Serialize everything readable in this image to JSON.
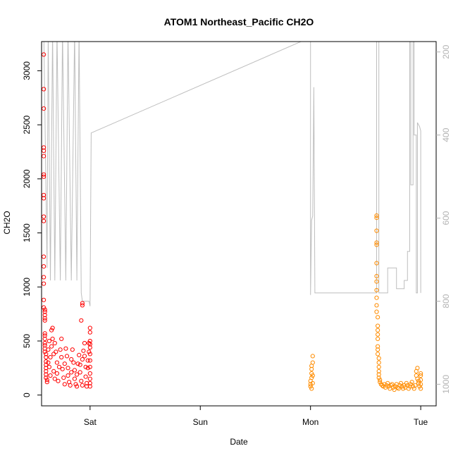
{
  "chart_data": {
    "type": "scatter",
    "title": "ATOM1 Northeast_Pacific CH2O",
    "xlabel": "Date",
    "ylabel": "CH2O",
    "x_ticks": [
      {
        "label": "Sat",
        "value": 1.0
      },
      {
        "label": "Sun",
        "value": 2.0
      },
      {
        "label": "Mon",
        "value": 3.0
      },
      {
        "label": "Tue",
        "value": 4.0
      }
    ],
    "xlim": [
      0.56,
      4.14
    ],
    "ylim": [
      -100,
      3270
    ],
    "y_ticks": [
      0,
      500,
      1000,
      1500,
      2000,
      2500,
      3000
    ],
    "y2_ticks": [
      200,
      400,
      600,
      800,
      1000
    ],
    "y2lim": [
      1052,
      175
    ],
    "colors": {
      "series_1": "#ff0000",
      "series_2": "#ff8c00",
      "pressure_line": "#bebebe",
      "right_axis": "#b3b3b3"
    },
    "series": [
      {
        "color": "#ff0000",
        "points": [
          [
            0.58,
            3150
          ],
          [
            0.58,
            2830
          ],
          [
            0.58,
            2650
          ],
          [
            0.58,
            2290
          ],
          [
            0.58,
            2260
          ],
          [
            0.58,
            2210
          ],
          [
            0.58,
            2040
          ],
          [
            0.58,
            2020
          ],
          [
            0.58,
            1850
          ],
          [
            0.58,
            1820
          ],
          [
            0.58,
            1650
          ],
          [
            0.58,
            1610
          ],
          [
            0.58,
            1280
          ],
          [
            0.58,
            1190
          ],
          [
            0.58,
            1090
          ],
          [
            0.58,
            1030
          ],
          [
            0.58,
            880
          ],
          [
            0.58,
            810
          ],
          [
            0.59,
            790
          ],
          [
            0.59,
            770
          ],
          [
            0.59,
            740
          ],
          [
            0.59,
            710
          ],
          [
            0.59,
            690
          ],
          [
            0.59,
            570
          ],
          [
            0.59,
            550
          ],
          [
            0.59,
            520
          ],
          [
            0.59,
            480
          ],
          [
            0.59,
            460
          ],
          [
            0.59,
            430
          ],
          [
            0.59,
            400
          ],
          [
            0.6,
            380
          ],
          [
            0.6,
            350
          ],
          [
            0.6,
            310
          ],
          [
            0.6,
            280
          ],
          [
            0.6,
            250
          ],
          [
            0.6,
            220
          ],
          [
            0.6,
            190
          ],
          [
            0.6,
            160
          ],
          [
            0.61,
            140
          ],
          [
            0.61,
            120
          ],
          [
            0.62,
            300
          ],
          [
            0.62,
            420
          ],
          [
            0.63,
            500
          ],
          [
            0.63,
            260
          ],
          [
            0.64,
            180
          ],
          [
            0.64,
            350
          ],
          [
            0.65,
            450
          ],
          [
            0.65,
            600
          ],
          [
            0.66,
            620
          ],
          [
            0.66,
            520
          ],
          [
            0.67,
            380
          ],
          [
            0.67,
            220
          ],
          [
            0.68,
            150
          ],
          [
            0.68,
            480
          ],
          [
            0.69,
            400
          ],
          [
            0.7,
            300
          ],
          [
            0.7,
            200
          ],
          [
            0.71,
            130
          ],
          [
            0.72,
            260
          ],
          [
            0.73,
            420
          ],
          [
            0.74,
            520
          ],
          [
            0.74,
            350
          ],
          [
            0.75,
            240
          ],
          [
            0.76,
            160
          ],
          [
            0.77,
            100
          ],
          [
            0.77,
            290
          ],
          [
            0.78,
            430
          ],
          [
            0.79,
            360
          ],
          [
            0.8,
            250
          ],
          [
            0.8,
            180
          ],
          [
            0.81,
            120
          ],
          [
            0.82,
            90
          ],
          [
            0.83,
            210
          ],
          [
            0.83,
            330
          ],
          [
            0.84,
            420
          ],
          [
            0.85,
            300
          ],
          [
            0.86,
            230
          ],
          [
            0.86,
            150
          ],
          [
            0.87,
            100
          ],
          [
            0.88,
            80
          ],
          [
            0.88,
            190
          ],
          [
            0.89,
            290
          ],
          [
            0.9,
            370
          ],
          [
            0.91,
            280
          ],
          [
            0.91,
            210
          ],
          [
            0.92,
            130
          ],
          [
            0.93,
            90
          ],
          [
            0.93,
            330
          ],
          [
            0.94,
            410
          ],
          [
            0.95,
            480
          ],
          [
            0.95,
            360
          ],
          [
            0.96,
            260
          ],
          [
            0.96,
            170
          ],
          [
            0.97,
            110
          ],
          [
            0.97,
            80
          ],
          [
            0.98,
            250
          ],
          [
            0.98,
            320
          ],
          [
            0.99,
            400
          ],
          [
            0.99,
            480
          ],
          [
            0.92,
            690
          ],
          [
            0.93,
            850
          ],
          [
            0.93,
            830
          ],
          [
            1.0,
            470
          ],
          [
            1.0,
            440
          ],
          [
            1.0,
            380
          ],
          [
            1.0,
            320
          ],
          [
            1.0,
            260
          ],
          [
            1.0,
            200
          ],
          [
            1.0,
            150
          ],
          [
            1.0,
            110
          ],
          [
            1.0,
            80
          ],
          [
            1.0,
            620
          ],
          [
            1.0,
            580
          ],
          [
            1.0,
            500
          ]
        ]
      },
      {
        "color": "#ff8c00",
        "points": [
          [
            3.0,
            80
          ],
          [
            3.0,
            100
          ],
          [
            3.0,
            130
          ],
          [
            3.01,
            160
          ],
          [
            3.01,
            200
          ],
          [
            3.01,
            240
          ],
          [
            3.01,
            270
          ],
          [
            3.02,
            300
          ],
          [
            3.02,
            360
          ],
          [
            3.01,
            60
          ],
          [
            3.02,
            110
          ],
          [
            3.02,
            180
          ],
          [
            3.6,
            1660
          ],
          [
            3.6,
            1640
          ],
          [
            3.6,
            1520
          ],
          [
            3.6,
            1410
          ],
          [
            3.6,
            1390
          ],
          [
            3.6,
            1220
          ],
          [
            3.6,
            1100
          ],
          [
            3.6,
            1050
          ],
          [
            3.6,
            970
          ],
          [
            3.6,
            900
          ],
          [
            3.6,
            830
          ],
          [
            3.6,
            770
          ],
          [
            3.61,
            720
          ],
          [
            3.61,
            640
          ],
          [
            3.61,
            600
          ],
          [
            3.61,
            560
          ],
          [
            3.61,
            520
          ],
          [
            3.61,
            450
          ],
          [
            3.61,
            420
          ],
          [
            3.61,
            380
          ],
          [
            3.62,
            340
          ],
          [
            3.62,
            300
          ],
          [
            3.62,
            260
          ],
          [
            3.62,
            220
          ],
          [
            3.62,
            190
          ],
          [
            3.62,
            160
          ],
          [
            3.63,
            140
          ],
          [
            3.63,
            120
          ],
          [
            3.64,
            100
          ],
          [
            3.65,
            90
          ],
          [
            3.66,
            80
          ],
          [
            3.67,
            100
          ],
          [
            3.68,
            70
          ],
          [
            3.69,
            90
          ],
          [
            3.7,
            110
          ],
          [
            3.71,
            80
          ],
          [
            3.72,
            60
          ],
          [
            3.73,
            90
          ],
          [
            3.74,
            100
          ],
          [
            3.75,
            70
          ],
          [
            3.76,
            50
          ],
          [
            3.77,
            80
          ],
          [
            3.78,
            100
          ],
          [
            3.79,
            70
          ],
          [
            3.8,
            60
          ],
          [
            3.81,
            90
          ],
          [
            3.82,
            110
          ],
          [
            3.83,
            80
          ],
          [
            3.84,
            60
          ],
          [
            3.85,
            90
          ],
          [
            3.86,
            70
          ],
          [
            3.87,
            110
          ],
          [
            3.88,
            90
          ],
          [
            3.89,
            60
          ],
          [
            3.9,
            80
          ],
          [
            3.91,
            100
          ],
          [
            3.92,
            120
          ],
          [
            3.93,
            80
          ],
          [
            3.94,
            60
          ],
          [
            3.95,
            90
          ],
          [
            3.96,
            180
          ],
          [
            3.96,
            220
          ],
          [
            3.97,
            250
          ],
          [
            3.97,
            150
          ],
          [
            3.98,
            110
          ],
          [
            3.99,
            80
          ],
          [
            4.0,
            100
          ],
          [
            4.0,
            140
          ],
          [
            4.0,
            180
          ],
          [
            4.0,
            200
          ],
          [
            4.0,
            60
          ],
          [
            3.98,
            130
          ]
        ]
      }
    ],
    "pressure_line": [
      [
        0.58,
        150
      ],
      [
        0.61,
        720
      ],
      [
        0.62,
        150
      ],
      [
        0.64,
        750
      ],
      [
        0.66,
        150
      ],
      [
        0.68,
        750
      ],
      [
        0.7,
        150
      ],
      [
        0.73,
        750
      ],
      [
        0.75,
        150
      ],
      [
        0.78,
        750
      ],
      [
        0.8,
        150
      ],
      [
        0.83,
        750
      ],
      [
        0.86,
        150
      ],
      [
        0.88,
        750
      ],
      [
        0.9,
        150
      ],
      [
        0.92,
        780
      ],
      [
        0.93,
        800
      ],
      [
        0.99,
        800
      ],
      [
        1.0,
        812
      ],
      [
        1.01,
        395
      ],
      [
        3.0,
        165
      ],
      [
        3.0,
        785
      ],
      [
        3.01,
        605
      ],
      [
        3.02,
        595
      ],
      [
        3.03,
        285
      ],
      [
        3.04,
        780
      ],
      [
        3.6,
        780
      ],
      [
        3.6,
        165
      ],
      [
        3.62,
        165
      ],
      [
        3.62,
        780
      ],
      [
        3.7,
        780
      ],
      [
        3.7,
        720
      ],
      [
        3.78,
        720
      ],
      [
        3.78,
        770
      ],
      [
        3.85,
        770
      ],
      [
        3.85,
        750
      ],
      [
        3.88,
        750
      ],
      [
        3.88,
        680
      ],
      [
        3.9,
        680
      ],
      [
        3.9,
        165
      ],
      [
        3.91,
        165
      ],
      [
        3.91,
        520
      ],
      [
        3.93,
        520
      ],
      [
        3.93,
        165
      ],
      [
        3.94,
        165
      ],
      [
        3.94,
        400
      ],
      [
        3.96,
        400
      ],
      [
        3.96,
        780
      ],
      [
        3.97,
        780
      ],
      [
        3.97,
        370
      ],
      [
        3.99,
        380
      ],
      [
        4.0,
        390
      ],
      [
        4.0,
        780
      ]
    ]
  }
}
